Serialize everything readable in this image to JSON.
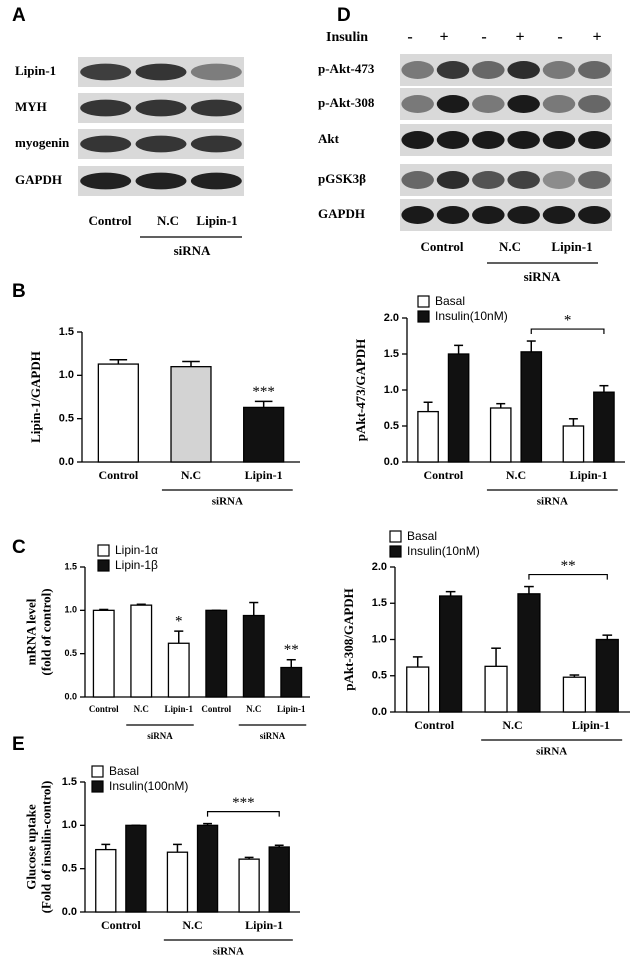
{
  "figure_labels": [
    "A",
    "B",
    "C",
    "D",
    "E"
  ],
  "panel_A": {
    "rows": [
      "Lipin-1",
      "MYH",
      "myogenin",
      "GAPDH"
    ],
    "lanes": [
      "Control",
      "N.C",
      "Lipin-1"
    ],
    "group": "siRNA"
  },
  "panel_D": {
    "treatment": "Insulin",
    "signs": [
      "-",
      "+",
      "-",
      "+",
      "-",
      "+"
    ],
    "rows": [
      "p-Akt-473",
      "p-Akt-308",
      "Akt",
      "pGSK3β",
      "GAPDH"
    ],
    "lanes": [
      "Control",
      "N.C",
      "Lipin-1"
    ],
    "group": "siRNA"
  },
  "chart_data": [
    {
      "type": "bar",
      "y_label": [
        "Lipin-1/GAPDH"
      ],
      "categories": [
        "Control",
        "N.C",
        "Lipin-1"
      ],
      "series": [
        {
          "colors": [
            "#ffffff",
            "#d3d3d3",
            "#111111"
          ],
          "values": [
            1.13,
            1.1,
            0.63
          ],
          "errors": [
            0.05,
            0.06,
            0.07
          ]
        }
      ],
      "ylim": [
        0,
        1.5
      ],
      "yticks": [
        {
          "value": 0,
          "label": "0.0"
        },
        0.5,
        {
          "value": 1,
          "label": "1.0"
        },
        1.5
      ],
      "group_label": "siRNA",
      "annotations": [
        "***"
      ]
    },
    {
      "type": "bar",
      "y_label": [
        "pAkt-473/GAPDH"
      ],
      "categories": [
        "Control",
        "N.C",
        "Lipin-1"
      ],
      "series": [
        {
          "name": "Basal",
          "color": "#ffffff",
          "values": [
            0.7,
            0.75,
            0.5
          ],
          "errors": [
            0.13,
            0.06,
            0.1
          ]
        },
        {
          "name": "Insulin(10nM)",
          "color": "#111111",
          "values": [
            1.5,
            1.53,
            0.97
          ],
          "errors": [
            0.12,
            0.15,
            0.09
          ]
        }
      ],
      "ylim": [
        0,
        2
      ],
      "yticks": [
        {
          "value": 0,
          "label": "0.0"
        },
        0.5,
        {
          "value": 1,
          "label": "1.0"
        },
        1.5,
        {
          "value": 2,
          "label": "2.0"
        }
      ],
      "group_label": "siRNA",
      "annotations": [
        "*"
      ]
    },
    {
      "type": "bar",
      "y_label": [
        "mRNA level",
        "(fold of control)"
      ],
      "categories": [
        "Control",
        "N.C",
        "Lipin-1"
      ],
      "series": [
        {
          "name": "Lipin-1α",
          "color": "#ffffff",
          "values": [
            1.0,
            1.06,
            0.62
          ],
          "errors": [
            0.01,
            0.01,
            0.14
          ]
        },
        {
          "name": "Lipin-1β",
          "color": "#111111",
          "values": [
            1.0,
            0.94,
            0.34
          ],
          "errors": [
            0,
            0.15,
            0.09
          ]
        }
      ],
      "ylim": [
        0,
        1.5
      ],
      "yticks": [
        {
          "value": 0,
          "label": "0.0"
        },
        0.5,
        {
          "value": 1,
          "label": "1.0"
        },
        1.5
      ],
      "group_label": "siRNA",
      "annotations": [
        "*",
        "**"
      ]
    },
    {
      "type": "bar",
      "y_label": [
        "pAkt-308/GAPDH"
      ],
      "categories": [
        "Control",
        "N.C",
        "Lipin-1"
      ],
      "series": [
        {
          "name": "Basal",
          "color": "#ffffff",
          "values": [
            0.62,
            0.63,
            0.48
          ],
          "errors": [
            0.14,
            0.25,
            0.03
          ]
        },
        {
          "name": "Insulin(10nM)",
          "color": "#111111",
          "values": [
            1.6,
            1.63,
            1.0
          ],
          "errors": [
            0.06,
            0.1,
            0.06
          ]
        }
      ],
      "ylim": [
        0,
        2
      ],
      "yticks": [
        {
          "value": 0,
          "label": "0.0"
        },
        0.5,
        {
          "value": 1,
          "label": "1.0"
        },
        1.5,
        {
          "value": 2,
          "label": "2.0"
        }
      ],
      "group_label": "siRNA",
      "annotations": [
        "**"
      ]
    },
    {
      "type": "bar",
      "y_label": [
        "Glucose uptake",
        "(Fold of insulin-control)"
      ],
      "categories": [
        "Control",
        "N.C",
        "Lipin-1"
      ],
      "series": [
        {
          "name": "Basal",
          "color": "#ffffff",
          "values": [
            0.72,
            0.69,
            0.61
          ],
          "errors": [
            0.06,
            0.09,
            0.02
          ]
        },
        {
          "name": "Insulin(100nM)",
          "color": "#111111",
          "values": [
            1.0,
            1.0,
            0.75
          ],
          "errors": [
            0,
            0.02,
            0.02
          ]
        }
      ],
      "ylim": [
        0,
        1.5
      ],
      "yticks": [
        {
          "value": 0,
          "label": "0.0"
        },
        0.5,
        {
          "value": 1,
          "label": "1.0"
        },
        1.5
      ],
      "group_label": "siRNA",
      "annotations": [
        "***"
      ]
    }
  ]
}
